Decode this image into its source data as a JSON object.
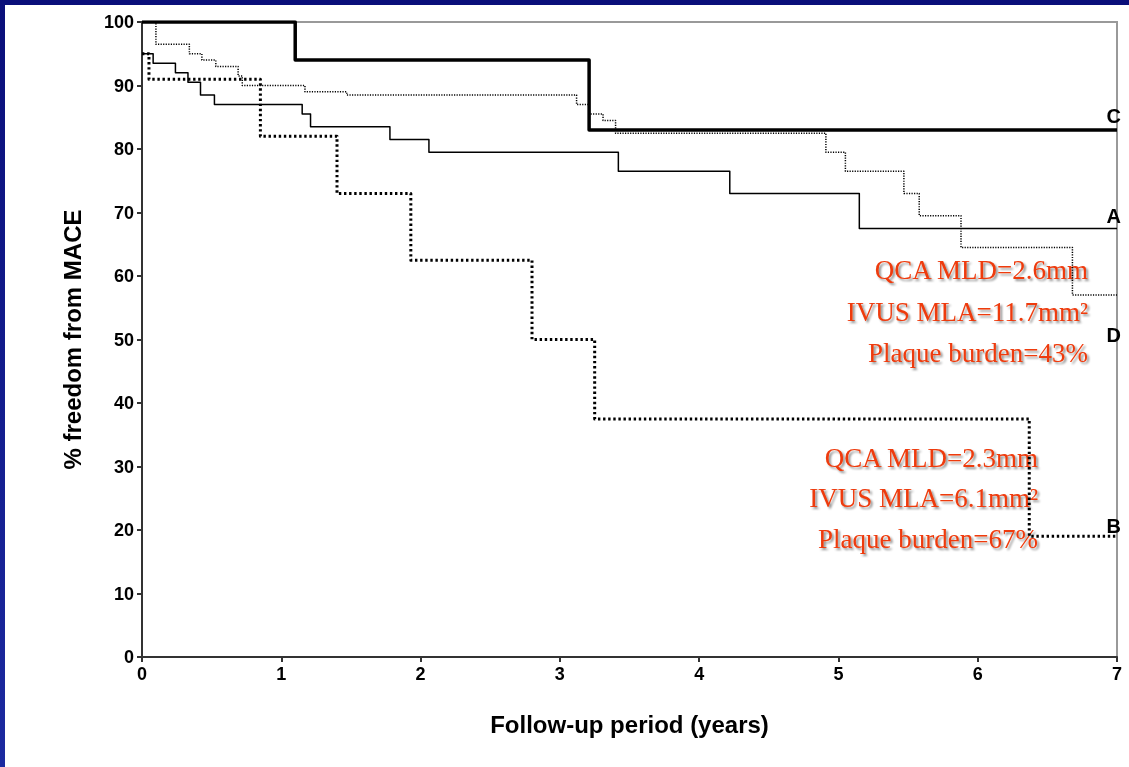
{
  "chart_data": {
    "type": "step",
    "xlabel": "Follow-up period (years)",
    "ylabel": "% freedom from MACE",
    "xlim": [
      0,
      7
    ],
    "xticks": [
      0,
      1,
      2,
      3,
      4,
      5,
      6,
      7
    ],
    "ylim": [
      0,
      100
    ],
    "yticks": [
      0,
      10,
      20,
      30,
      40,
      50,
      60,
      70,
      80,
      90,
      100
    ],
    "grid": false,
    "legend": false,
    "marker": "none",
    "series": [
      {
        "name": "C",
        "color": "#000000",
        "line_style": "solid",
        "x": [
          0,
          1.1,
          3.21,
          7
        ],
        "values": [
          100,
          94,
          83,
          83
        ]
      },
      {
        "name": "A",
        "color": "#000000",
        "line_style": "solid",
        "x": [
          0,
          0.08,
          0.24,
          0.33,
          0.42,
          0.52,
          1.15,
          1.21,
          1.78,
          2.06,
          3.42,
          4.22,
          5.15,
          7
        ],
        "values": [
          95,
          93.5,
          92,
          90.5,
          88.5,
          87,
          85.5,
          83.5,
          81.5,
          79.5,
          76.5,
          73,
          67.5,
          67.5
        ]
      },
      {
        "name": "D",
        "color": "#000000",
        "line_style": "dotted",
        "x": [
          0,
          0.1,
          0.34,
          0.43,
          0.53,
          0.69,
          0.72,
          1.17,
          1.47,
          3.12,
          3.21,
          3.31,
          3.4,
          4.91,
          5.05,
          5.47,
          5.58,
          5.88,
          6.68,
          7
        ],
        "values": [
          100,
          96.5,
          95,
          94,
          93,
          91.5,
          90,
          89,
          88.5,
          87,
          85.5,
          84.5,
          82.5,
          79.5,
          76.5,
          73,
          69.5,
          64.5,
          57,
          57
        ]
      },
      {
        "name": "B",
        "color": "#000000",
        "line_style": "dotted",
        "x": [
          0,
          0.05,
          0.85,
          1.4,
          1.93,
          2.8,
          3.25,
          6.37,
          7
        ],
        "values": [
          95,
          91,
          82,
          73,
          62.5,
          50,
          37.5,
          19,
          19
        ]
      }
    ],
    "annotations": [
      "QCA MLD=2.6mm",
      "IVUS MLA=11.7mm²",
      "Plaque burden=43%",
      "QCA MLD=2.3mm",
      "IVUS MLA=6.1mm²",
      "Plaque burden=67%"
    ]
  }
}
